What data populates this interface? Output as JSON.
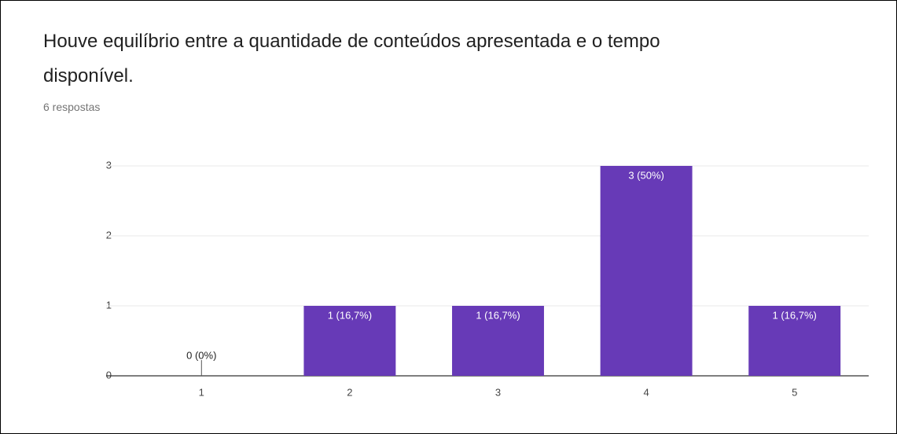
{
  "chart_data": {
    "type": "bar",
    "title": "Houve equilíbrio entre a quantidade de conteúdos apresentada e o tempo disponível.",
    "subtitle": "6 respostas",
    "categories": [
      "1",
      "2",
      "3",
      "4",
      "5"
    ],
    "values": [
      0,
      1,
      1,
      3,
      1
    ],
    "value_labels": [
      "0 (0%)",
      "1 (16,7%)",
      "1 (16,7%)",
      "3 (50%)",
      "1 (16,7%)"
    ],
    "color": "#673ab7",
    "ylim": [
      0,
      3
    ],
    "yticks": [
      0,
      1,
      2,
      3
    ],
    "grid": true
  }
}
